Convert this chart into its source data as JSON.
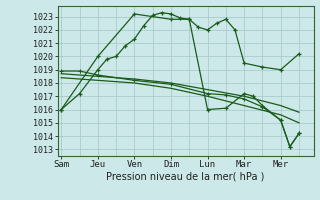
{
  "background_color": "#cce8e8",
  "grid_color": "#aacccc",
  "line_color": "#1a5c1a",
  "title": "Pression niveau de la mer( hPa )",
  "ylim": [
    1012.5,
    1023.8
  ],
  "yticks": [
    1013,
    1014,
    1015,
    1016,
    1017,
    1018,
    1019,
    1020,
    1021,
    1022,
    1023
  ],
  "x_labels": [
    "Sam",
    "Jeu",
    "Ven",
    "Dim",
    "Lun",
    "Mar",
    "Mer"
  ],
  "x_positions": [
    0,
    2,
    4,
    6,
    8,
    10,
    12
  ],
  "xlim": [
    -0.2,
    13.8
  ],
  "series1_x": [
    0,
    1,
    2,
    2.5,
    3,
    3.5,
    4,
    4.5,
    5,
    5.5,
    6,
    6.5,
    7,
    7.5,
    8,
    8.5,
    9,
    9.5,
    10,
    11,
    12,
    13
  ],
  "series1_y": [
    1016.0,
    1017.2,
    1019.0,
    1019.8,
    1020.0,
    1020.8,
    1021.3,
    1022.3,
    1023.1,
    1023.3,
    1023.2,
    1022.9,
    1022.8,
    1022.2,
    1022.0,
    1022.5,
    1022.8,
    1022.0,
    1019.5,
    1019.2,
    1019.0,
    1020.2
  ],
  "series2_x": [
    0,
    2,
    4,
    6,
    8,
    10,
    12,
    13
  ],
  "series2_y": [
    1018.7,
    1018.5,
    1018.3,
    1018.0,
    1017.5,
    1017.0,
    1016.3,
    1015.8
  ],
  "series3_x": [
    0,
    2,
    4,
    6,
    8,
    10,
    12,
    13
  ],
  "series3_y": [
    1018.4,
    1018.2,
    1018.0,
    1017.6,
    1017.0,
    1016.3,
    1015.6,
    1015.0
  ],
  "series4_x": [
    0,
    2,
    4,
    6,
    7,
    8,
    9,
    10,
    10.5,
    11,
    12,
    12.5,
    13
  ],
  "series4_y": [
    1016.0,
    1020.0,
    1023.2,
    1022.8,
    1022.8,
    1016.0,
    1016.1,
    1017.2,
    1017.0,
    1016.3,
    1015.2,
    1013.2,
    1014.2
  ],
  "series5_x": [
    0,
    1,
    2,
    4,
    6,
    8,
    9,
    10,
    11,
    12,
    12.5,
    13
  ],
  "series5_y": [
    1018.9,
    1018.9,
    1018.6,
    1018.2,
    1017.9,
    1017.2,
    1017.1,
    1016.8,
    1016.2,
    1015.2,
    1013.2,
    1014.2
  ]
}
